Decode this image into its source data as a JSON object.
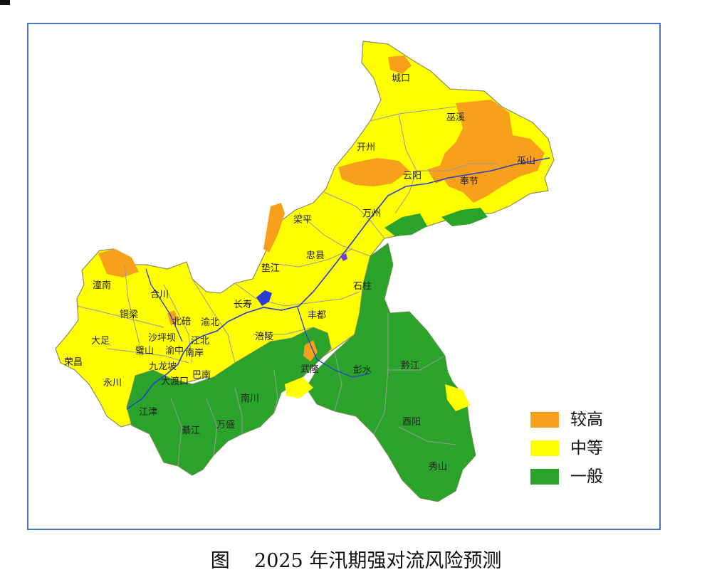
{
  "caption": "图    2025 年汛期强对流风险预测",
  "legend": {
    "items": [
      {
        "label": "较高",
        "color": "#f7a01c"
      },
      {
        "label": "中等",
        "color": "#ffff00"
      },
      {
        "label": "一般",
        "color": "#2aa32a"
      }
    ]
  },
  "colors": {
    "frame": "#4a74c8",
    "boundary": "#9a9a9a",
    "river": "#2741c8",
    "lake": "#2a3bd6"
  },
  "districts": [
    {
      "name": "城口"
    },
    {
      "name": "巫溪"
    },
    {
      "name": "开州"
    },
    {
      "name": "巫山"
    },
    {
      "name": "云阳"
    },
    {
      "name": "奉节"
    },
    {
      "name": "万州"
    },
    {
      "name": "梁平"
    },
    {
      "name": "忠县"
    },
    {
      "name": "垫江"
    },
    {
      "name": "石柱"
    },
    {
      "name": "潼南"
    },
    {
      "name": "合川"
    },
    {
      "name": "铜梁"
    },
    {
      "name": "长寿"
    },
    {
      "name": "北碚"
    },
    {
      "name": "渝北"
    },
    {
      "name": "丰都"
    },
    {
      "name": "大足"
    },
    {
      "name": "沙坪坝"
    },
    {
      "name": "江北"
    },
    {
      "name": "涪陵"
    },
    {
      "name": "璧山"
    },
    {
      "name": "渝中"
    },
    {
      "name": "南岸"
    },
    {
      "name": "荣昌"
    },
    {
      "name": "九龙坡"
    },
    {
      "name": "巴南"
    },
    {
      "name": "武隆"
    },
    {
      "name": "彭水"
    },
    {
      "name": "黔江"
    },
    {
      "name": "永川"
    },
    {
      "name": "大渡口"
    },
    {
      "name": "南川"
    },
    {
      "name": "江津"
    },
    {
      "name": "万盛"
    },
    {
      "name": "綦江"
    },
    {
      "name": "酉阳"
    },
    {
      "name": "秀山"
    }
  ]
}
